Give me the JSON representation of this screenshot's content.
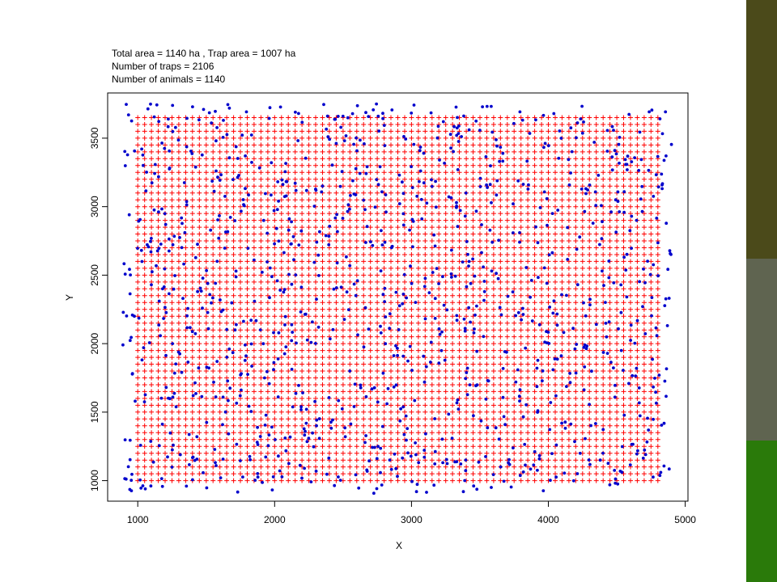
{
  "annotations": {
    "line1": "Total area =  1140 ha , Trap area =  1007 ha",
    "line2": "Number of traps =  2106",
    "line3": "Number of animals =  1140"
  },
  "side_panel": {
    "colors": [
      "#4b4a1a",
      "#5f6450",
      "#2a7a0a"
    ]
  },
  "chart_data": {
    "type": "scatter",
    "title": "",
    "xlabel": "X",
    "ylabel": "Y",
    "xlim": [
      780,
      5020
    ],
    "ylim": [
      850,
      3830
    ],
    "x_ticks": [
      1000,
      2000,
      3000,
      4000,
      5000
    ],
    "y_ticks": [
      1000,
      1500,
      2000,
      2500,
      3000,
      3500
    ],
    "grid": false,
    "traps": {
      "marker": "+",
      "color": "#ff0000",
      "x_start": 1000,
      "x_end": 4800,
      "x_step": 50,
      "y_start": 1000,
      "y_end": 3650,
      "y_step": 50
    },
    "animals": {
      "marker": "dot",
      "color": "#0000cc",
      "count": 1140,
      "x_range": [
        890,
        4900
      ],
      "y_range": [
        905,
        3750
      ]
    }
  }
}
